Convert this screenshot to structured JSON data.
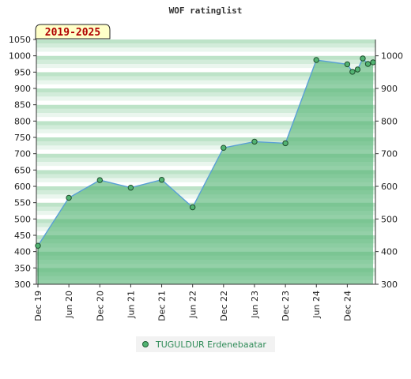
{
  "chart_data": {
    "type": "area",
    "title": "WOF ratinglist",
    "period": "2019-2025",
    "xlabel": "",
    "ylabel": "",
    "ylim": [
      300,
      1050
    ],
    "y_ticks_left": [
      1050,
      1000,
      950,
      900,
      850,
      800,
      750,
      700,
      650,
      600,
      550,
      500,
      450,
      400,
      350,
      300
    ],
    "y_ticks_right": [
      1000,
      900,
      800,
      700,
      600,
      500,
      400,
      300
    ],
    "x_ticks": [
      {
        "label": "Dec 19",
        "date": "2019-12"
      },
      {
        "label": "Jun 20",
        "date": "2020-06"
      },
      {
        "label": "Dec 20",
        "date": "2020-12"
      },
      {
        "label": "Jun 21",
        "date": "2021-06"
      },
      {
        "label": "Dec 21",
        "date": "2021-12"
      },
      {
        "label": "Jun 22",
        "date": "2022-06"
      },
      {
        "label": "Dec 22",
        "date": "2022-12"
      },
      {
        "label": "Jun 23",
        "date": "2023-06"
      },
      {
        "label": "Dec 23",
        "date": "2023-12"
      },
      {
        "label": "Jun 24",
        "date": "2024-06"
      },
      {
        "label": "Dec 24",
        "date": "2024-12"
      }
    ],
    "x_range": [
      "2019-12",
      "2025-05"
    ],
    "grid": true,
    "legend_position": "bottom",
    "series": [
      {
        "name": "TUGULDUR Erdenebaatar",
        "color": "#5aa0d6",
        "fill": "#52b372",
        "points": [
          {
            "date": "2019-12",
            "value": 418
          },
          {
            "date": "2020-06",
            "value": 565
          },
          {
            "date": "2020-12",
            "value": 619
          },
          {
            "date": "2021-06",
            "value": 596
          },
          {
            "date": "2021-12",
            "value": 620
          },
          {
            "date": "2022-06",
            "value": 536
          },
          {
            "date": "2022-12",
            "value": 718
          },
          {
            "date": "2023-06",
            "value": 737
          },
          {
            "date": "2023-12",
            "value": 732
          },
          {
            "date": "2024-06",
            "value": 987
          },
          {
            "date": "2024-12",
            "value": 974
          },
          {
            "date": "2025-01",
            "value": 951
          },
          {
            "date": "2025-02",
            "value": 958
          },
          {
            "date": "2025-03",
            "value": 992
          },
          {
            "date": "2025-04",
            "value": 975
          },
          {
            "date": "2025-05",
            "value": 980
          }
        ]
      }
    ]
  }
}
